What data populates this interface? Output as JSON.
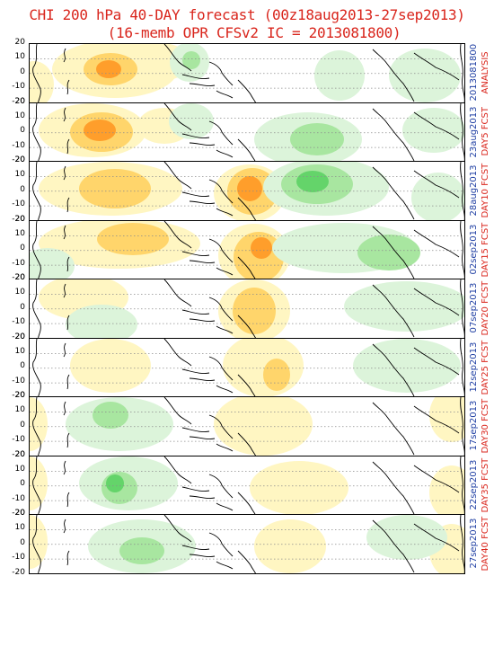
{
  "title_line1": "CHI 200 hPa 40-DAY forecast (00z18aug2013-27sep2013)",
  "title_line2": "(16-memb OPR CFSv2 IC = 2013081800)",
  "colors": {
    "title": "#d9251c",
    "label_red": "#d9251c",
    "label_blue": "#1f3fa3",
    "positive_light": "#fff6c2",
    "positive_mid": "#ffd56b",
    "positive_strong": "#ff9e2b",
    "positive_max": "#ff6a1a",
    "negative_light": "#dcf4da",
    "negative_mid": "#a8e6a0",
    "negative_strong": "#64d46a",
    "negative_max": "#25b04a"
  },
  "chart_data": {
    "type": "heatmap",
    "variable": "CHI 200 hPa",
    "ytick_labels": [
      "20",
      "10",
      "0",
      "-10",
      "-20"
    ],
    "panels": [
      {
        "label": "ANALYSIS",
        "date": "2013081800"
      },
      {
        "label": "DAY5 FCST",
        "date": "23aug2013"
      },
      {
        "label": "DAY10 FCST",
        "date": "28aug2013"
      },
      {
        "label": "DAY15 FCST",
        "date": "02sep2013"
      },
      {
        "label": "DAY20 FCST",
        "date": "07sep2013"
      },
      {
        "label": "DAY25 FCST",
        "date": "12sep2013"
      },
      {
        "label": "DAY30 FCST",
        "date": "17sep2013"
      },
      {
        "label": "DAY35 FCST",
        "date": "22sep2013"
      },
      {
        "label": "DAY40 FCST",
        "date": "27sep2013"
      }
    ]
  }
}
